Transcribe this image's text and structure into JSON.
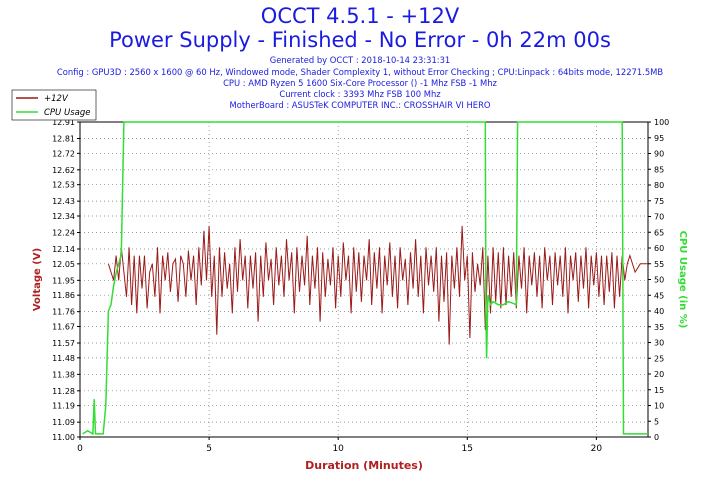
{
  "header": {
    "title": "OCCT 4.5.1 - +12V",
    "subtitle": "Power Supply - Finished - No Error - 0h 22m 00s",
    "generated": "Generated by OCCT : 2018-10-14 23:31:31",
    "config": "Config : GPU3D : 2560 x 1600 @ 60 Hz, Windowed mode, Shader Complexity 1, without Error Checking ; CPU:Linpack : 64bits mode, 12271.5MB",
    "cpu": "CPU : AMD Ryzen 5 1600 Six-Core Processor () -1 Mhz FSB -1 Mhz",
    "clock": "Current clock : 3393 Mhz FSB 100 Mhz",
    "motherboard": "MotherBoard : ASUSTeK COMPUTER INC.: CROSSHAIR VI HERO"
  },
  "colors": {
    "voltage": "#9b1a1a",
    "cpu_usage": "#33dd33",
    "text_blue": "#1a1ae0",
    "axis_red": "#b02020",
    "grid": "#777777"
  },
  "chart_data": {
    "type": "line",
    "xlabel": "Duration (Minutes)",
    "ylabel": "Voltage (V)",
    "y2label": "CPU Usage (in %)",
    "xlim": [
      0,
      22
    ],
    "ylim": [
      11.0,
      12.91
    ],
    "y2lim": [
      0,
      100
    ],
    "x_ticks": [
      0,
      5,
      10,
      15,
      20
    ],
    "y_ticks": [
      11.0,
      11.09,
      11.19,
      11.28,
      11.38,
      11.48,
      11.57,
      11.67,
      11.76,
      11.86,
      11.95,
      12.05,
      12.14,
      12.24,
      12.34,
      12.43,
      12.53,
      12.62,
      12.72,
      12.81,
      12.91
    ],
    "y_tick_labels": [
      "11.00",
      "11.09",
      "11.19",
      "11.28",
      "11.38",
      "11.48",
      "11.57",
      "11.67",
      "11.76",
      "11.86",
      "11.95",
      "12.05",
      "12.14",
      "12.24",
      "12.34",
      "12.43",
      "12.53",
      "12.62",
      "12.72",
      "12.81",
      "12.91"
    ],
    "y2_ticks": [
      0,
      5,
      10,
      15,
      20,
      25,
      30,
      35,
      40,
      45,
      50,
      55,
      60,
      65,
      70,
      75,
      80,
      85,
      90,
      95,
      100
    ],
    "legend_position": "top-left",
    "grid": true,
    "series": [
      {
        "name": "+12V",
        "axis": "left",
        "points": [
          [
            1.1,
            12.05
          ],
          [
            1.2,
            12.0
          ],
          [
            1.3,
            11.95
          ],
          [
            1.4,
            12.1
          ],
          [
            1.5,
            11.95
          ],
          [
            1.6,
            12.15
          ],
          [
            1.7,
            12.0
          ],
          [
            1.8,
            11.85
          ],
          [
            1.9,
            12.15
          ],
          [
            2.0,
            11.8
          ],
          [
            2.1,
            12.1
          ],
          [
            2.2,
            11.75
          ],
          [
            2.3,
            12.1
          ],
          [
            2.4,
            11.9
          ],
          [
            2.5,
            12.1
          ],
          [
            2.6,
            11.78
          ],
          [
            2.7,
            12.0
          ],
          [
            2.8,
            12.05
          ],
          [
            2.9,
            11.85
          ],
          [
            3.0,
            12.15
          ],
          [
            3.1,
            11.75
          ],
          [
            3.2,
            12.1
          ],
          [
            3.3,
            11.95
          ],
          [
            3.4,
            12.12
          ],
          [
            3.5,
            11.88
          ],
          [
            3.6,
            12.05
          ],
          [
            3.7,
            12.08
          ],
          [
            3.8,
            11.82
          ],
          [
            3.9,
            12.1
          ],
          [
            4.0,
            12.05
          ],
          [
            4.1,
            11.85
          ],
          [
            4.2,
            12.13
          ],
          [
            4.3,
            11.95
          ],
          [
            4.4,
            12.1
          ],
          [
            4.5,
            11.8
          ],
          [
            4.6,
            12.15
          ],
          [
            4.7,
            11.92
          ],
          [
            4.8,
            12.25
          ],
          [
            4.9,
            11.95
          ],
          [
            5.0,
            12.28
          ],
          [
            5.1,
            11.85
          ],
          [
            5.2,
            12.1
          ],
          [
            5.3,
            11.62
          ],
          [
            5.4,
            12.15
          ],
          [
            5.5,
            11.85
          ],
          [
            5.6,
            12.12
          ],
          [
            5.7,
            11.9
          ],
          [
            5.8,
            12.05
          ],
          [
            5.9,
            11.75
          ],
          [
            6.0,
            12.15
          ],
          [
            6.1,
            11.88
          ],
          [
            6.2,
            12.2
          ],
          [
            6.3,
            11.95
          ],
          [
            6.4,
            12.1
          ],
          [
            6.5,
            11.78
          ],
          [
            6.6,
            12.1
          ],
          [
            6.7,
            11.9
          ],
          [
            6.8,
            12.12
          ],
          [
            6.9,
            11.7
          ],
          [
            7.0,
            12.1
          ],
          [
            7.1,
            11.85
          ],
          [
            7.2,
            12.18
          ],
          [
            7.3,
            11.95
          ],
          [
            7.4,
            12.08
          ],
          [
            7.5,
            11.8
          ],
          [
            7.6,
            12.15
          ],
          [
            7.7,
            11.92
          ],
          [
            7.8,
            12.1
          ],
          [
            7.9,
            11.85
          ],
          [
            8.0,
            12.2
          ],
          [
            8.1,
            11.95
          ],
          [
            8.2,
            12.12
          ],
          [
            8.3,
            11.75
          ],
          [
            8.4,
            12.15
          ],
          [
            8.5,
            11.88
          ],
          [
            8.6,
            12.1
          ],
          [
            8.7,
            11.92
          ],
          [
            8.8,
            12.22
          ],
          [
            8.9,
            11.8
          ],
          [
            9.0,
            12.1
          ],
          [
            9.1,
            11.9
          ],
          [
            9.2,
            12.15
          ],
          [
            9.3,
            11.7
          ],
          [
            9.4,
            12.12
          ],
          [
            9.5,
            11.85
          ],
          [
            9.6,
            12.08
          ],
          [
            9.7,
            11.92
          ],
          [
            9.8,
            12.15
          ],
          [
            9.9,
            11.78
          ],
          [
            10.0,
            12.1
          ],
          [
            10.1,
            11.85
          ],
          [
            10.2,
            12.18
          ],
          [
            10.3,
            11.95
          ],
          [
            10.4,
            12.1
          ],
          [
            10.5,
            11.75
          ],
          [
            10.6,
            12.15
          ],
          [
            10.7,
            11.88
          ],
          [
            10.8,
            12.12
          ],
          [
            10.9,
            11.82
          ],
          [
            11.0,
            12.1
          ],
          [
            11.1,
            11.95
          ],
          [
            11.2,
            12.2
          ],
          [
            11.3,
            11.8
          ],
          [
            11.4,
            12.12
          ],
          [
            11.5,
            11.9
          ],
          [
            11.6,
            12.15
          ],
          [
            11.7,
            11.75
          ],
          [
            11.8,
            12.1
          ],
          [
            11.9,
            11.92
          ],
          [
            12.0,
            12.18
          ],
          [
            12.1,
            11.85
          ],
          [
            12.2,
            12.1
          ],
          [
            12.3,
            11.78
          ],
          [
            12.4,
            12.15
          ],
          [
            12.5,
            11.95
          ],
          [
            12.6,
            12.08
          ],
          [
            12.7,
            11.8
          ],
          [
            12.8,
            12.12
          ],
          [
            12.9,
            11.9
          ],
          [
            13.0,
            12.2
          ],
          [
            13.1,
            11.85
          ],
          [
            13.2,
            12.1
          ],
          [
            13.3,
            11.75
          ],
          [
            13.4,
            12.15
          ],
          [
            13.5,
            11.92
          ],
          [
            13.6,
            12.1
          ],
          [
            13.7,
            11.88
          ],
          [
            13.8,
            12.15
          ],
          [
            13.9,
            11.7
          ],
          [
            14.0,
            12.1
          ],
          [
            14.1,
            11.82
          ],
          [
            14.2,
            12.12
          ],
          [
            14.3,
            11.56
          ],
          [
            14.4,
            12.1
          ],
          [
            14.5,
            11.9
          ],
          [
            14.6,
            12.15
          ],
          [
            14.7,
            11.85
          ],
          [
            14.8,
            12.28
          ],
          [
            14.9,
            11.95
          ],
          [
            15.0,
            12.1
          ],
          [
            15.1,
            11.6
          ],
          [
            15.2,
            12.12
          ],
          [
            15.3,
            11.88
          ],
          [
            15.4,
            12.05
          ],
          [
            15.5,
            11.92
          ],
          [
            15.6,
            12.15
          ],
          [
            15.7,
            11.65
          ],
          [
            15.8,
            12.1
          ],
          [
            15.9,
            11.75
          ],
          [
            16.0,
            12.15
          ],
          [
            16.1,
            11.82
          ],
          [
            16.2,
            12.12
          ],
          [
            16.3,
            11.78
          ],
          [
            16.4,
            12.15
          ],
          [
            16.5,
            11.8
          ],
          [
            16.6,
            12.1
          ],
          [
            16.7,
            11.85
          ],
          [
            16.8,
            12.12
          ],
          [
            16.9,
            11.78
          ],
          [
            17.0,
            12.1
          ],
          [
            17.1,
            11.9
          ],
          [
            17.2,
            12.15
          ],
          [
            17.3,
            11.75
          ],
          [
            17.4,
            12.1
          ],
          [
            17.5,
            11.92
          ],
          [
            17.6,
            12.12
          ],
          [
            17.7,
            11.85
          ],
          [
            17.8,
            12.1
          ],
          [
            17.9,
            11.78
          ],
          [
            18.0,
            12.15
          ],
          [
            18.1,
            11.95
          ],
          [
            18.2,
            12.1
          ],
          [
            18.3,
            11.8
          ],
          [
            18.4,
            12.12
          ],
          [
            18.5,
            11.92
          ],
          [
            18.6,
            12.1
          ],
          [
            18.7,
            11.85
          ],
          [
            18.8,
            12.15
          ],
          [
            18.9,
            11.75
          ],
          [
            19.0,
            12.1
          ],
          [
            19.1,
            11.95
          ],
          [
            19.2,
            12.12
          ],
          [
            19.3,
            11.82
          ],
          [
            19.4,
            12.1
          ],
          [
            19.5,
            11.9
          ],
          [
            19.6,
            12.15
          ],
          [
            19.7,
            11.78
          ],
          [
            19.8,
            12.1
          ],
          [
            19.9,
            11.92
          ],
          [
            20.0,
            12.12
          ],
          [
            20.1,
            11.85
          ],
          [
            20.2,
            12.1
          ],
          [
            20.3,
            11.8
          ],
          [
            20.4,
            12.1
          ],
          [
            20.5,
            11.88
          ],
          [
            20.6,
            12.12
          ],
          [
            20.7,
            11.78
          ],
          [
            20.8,
            12.1
          ],
          [
            20.9,
            11.85
          ],
          [
            21.0,
            12.1
          ],
          [
            21.1,
            11.95
          ],
          [
            21.2,
            12.05
          ],
          [
            21.3,
            12.1
          ],
          [
            21.5,
            12.0
          ],
          [
            21.7,
            12.05
          ],
          [
            22.0,
            12.05
          ]
        ]
      },
      {
        "name": "CPU Usage",
        "axis": "right",
        "points": [
          [
            0.1,
            1
          ],
          [
            0.3,
            2
          ],
          [
            0.5,
            1
          ],
          [
            0.55,
            12
          ],
          [
            0.6,
            1
          ],
          [
            0.9,
            1
          ],
          [
            1.0,
            10
          ],
          [
            1.05,
            25
          ],
          [
            1.1,
            40
          ],
          [
            1.2,
            42
          ],
          [
            1.3,
            48
          ],
          [
            1.4,
            52
          ],
          [
            1.5,
            55
          ],
          [
            1.6,
            58
          ],
          [
            1.7,
            100
          ],
          [
            1.8,
            100
          ],
          [
            15.7,
            100
          ],
          [
            15.72,
            40
          ],
          [
            15.75,
            25
          ],
          [
            15.8,
            45
          ],
          [
            15.9,
            42
          ],
          [
            16.0,
            43
          ],
          [
            16.2,
            42
          ],
          [
            16.4,
            42
          ],
          [
            16.6,
            43
          ],
          [
            16.9,
            42
          ],
          [
            16.95,
            100
          ],
          [
            21.0,
            100
          ],
          [
            21.05,
            1
          ],
          [
            21.5,
            1
          ],
          [
            22.0,
            1
          ]
        ]
      }
    ]
  }
}
